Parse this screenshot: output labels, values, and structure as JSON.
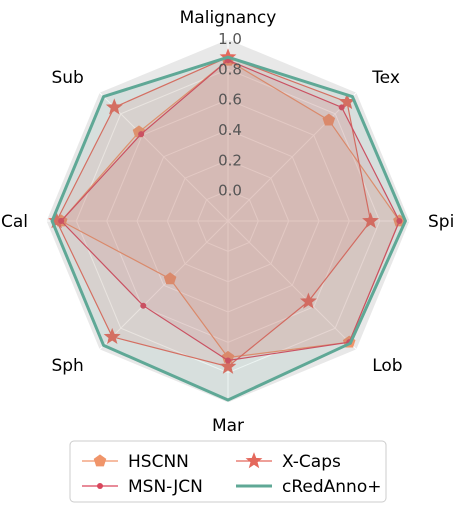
{
  "chart_data": {
    "type": "radar",
    "axes": [
      "Malignancy",
      "Tex",
      "Spi",
      "Lob",
      "Mar",
      "Sph",
      "Cal",
      "Sub"
    ],
    "radial_ticks": [
      "0.0",
      "0.2",
      "0.4",
      "0.6",
      "0.8",
      "1.0"
    ],
    "tick_values": [
      0.0,
      0.2,
      0.4,
      0.6,
      0.8,
      1.0
    ],
    "rlim": [
      -0.2,
      1.0
    ],
    "series": [
      {
        "name": "HSCNN",
        "marker": "pentagon",
        "color": "#f0956a",
        "values": [
          0.86,
          0.74,
          0.93,
          0.93,
          0.7,
          0.34,
          0.9,
          0.63
        ]
      },
      {
        "name": "X-Caps",
        "marker": "star",
        "color": "#e4685c",
        "values": [
          0.88,
          0.91,
          0.74,
          0.55,
          0.76,
          0.88,
          0.93,
          0.86
        ]
      },
      {
        "name": "MSN-JCN",
        "marker": "dot",
        "color": "#d9465c",
        "values": [
          0.86,
          0.86,
          0.93,
          0.93,
          0.72,
          0.59,
          0.9,
          0.61
        ]
      },
      {
        "name": "cRedAnno+",
        "marker": "none",
        "color": "#5fa896",
        "values": [
          0.88,
          0.96,
          0.97,
          0.94,
          0.98,
          0.96,
          0.96,
          0.96
        ]
      }
    ],
    "legend": {
      "position": "bottom",
      "columns": 2
    },
    "grid": true
  }
}
